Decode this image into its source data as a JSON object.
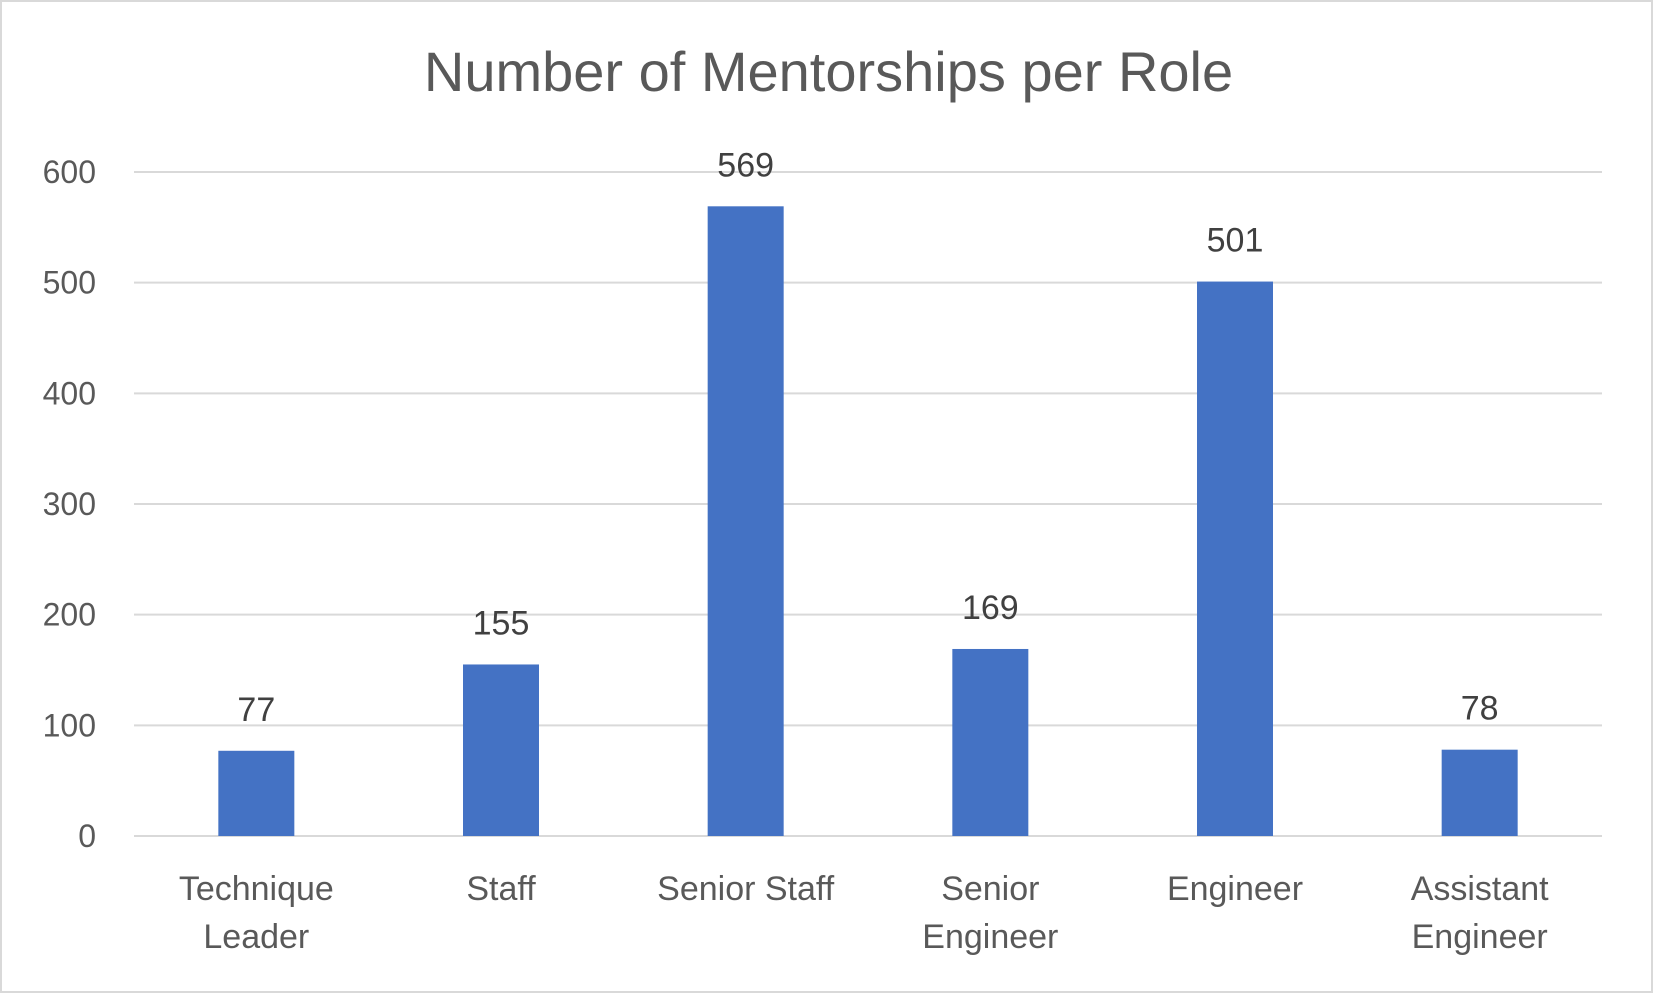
{
  "chart_data": {
    "type": "bar",
    "title": "Number of Mentorships per Role",
    "categories": [
      [
        "Technique",
        "Leader"
      ],
      [
        "Staff"
      ],
      [
        "Senior Staff"
      ],
      [
        "Senior",
        "Engineer"
      ],
      [
        "Engineer"
      ],
      [
        "Assistant",
        "Engineer"
      ]
    ],
    "values": [
      77,
      155,
      569,
      169,
      501,
      78
    ],
    "ylim": [
      0,
      600
    ],
    "yticks": [
      0,
      100,
      200,
      300,
      400,
      500,
      600
    ],
    "grid": true,
    "data_labels": true,
    "legend": "none",
    "bar_color": "#4472C4",
    "grid_color": "#d9d9d9",
    "axis_color": "#d9d9d9"
  }
}
